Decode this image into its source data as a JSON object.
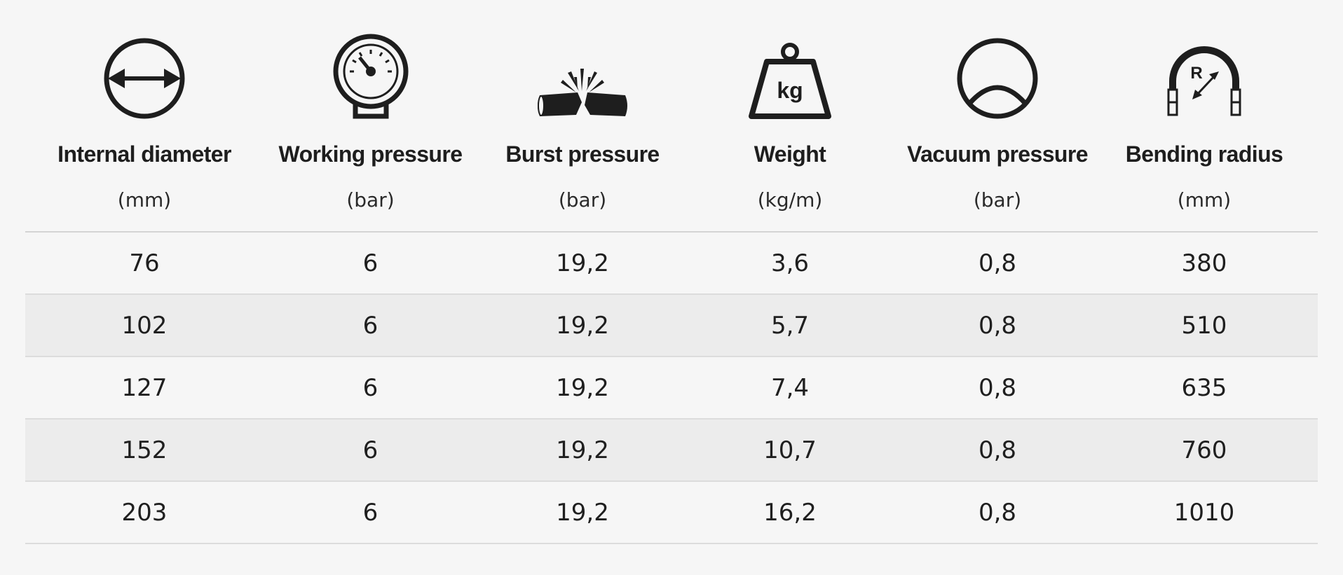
{
  "columns": [
    {
      "icon": "diameter-icon",
      "title": "Internal diameter",
      "unit": "(mm)"
    },
    {
      "icon": "pressure-gauge-icon",
      "title": "Working pressure",
      "unit": "(bar)"
    },
    {
      "icon": "burst-hose-icon",
      "title": "Burst pressure",
      "unit": "(bar)"
    },
    {
      "icon": "weight-kg-icon",
      "title": "Weight",
      "unit": "(kg/m)"
    },
    {
      "icon": "vacuum-icon",
      "title": "Vacuum pressure",
      "unit": "(bar)"
    },
    {
      "icon": "bending-radius-icon",
      "title": "Bending radius",
      "unit": "(mm)"
    }
  ],
  "weight_icon_label": "kg",
  "radius_icon_label": "R",
  "rows": [
    [
      "76",
      "6",
      "19,2",
      "3,6",
      "0,8",
      "380"
    ],
    [
      "102",
      "6",
      "19,2",
      "5,7",
      "0,8",
      "510"
    ],
    [
      "127",
      "6",
      "19,2",
      "7,4",
      "0,8",
      "635"
    ],
    [
      "152",
      "6",
      "19,2",
      "10,7",
      "0,8",
      "760"
    ],
    [
      "203",
      "6",
      "19,2",
      "16,2",
      "0,8",
      "1010"
    ]
  ]
}
